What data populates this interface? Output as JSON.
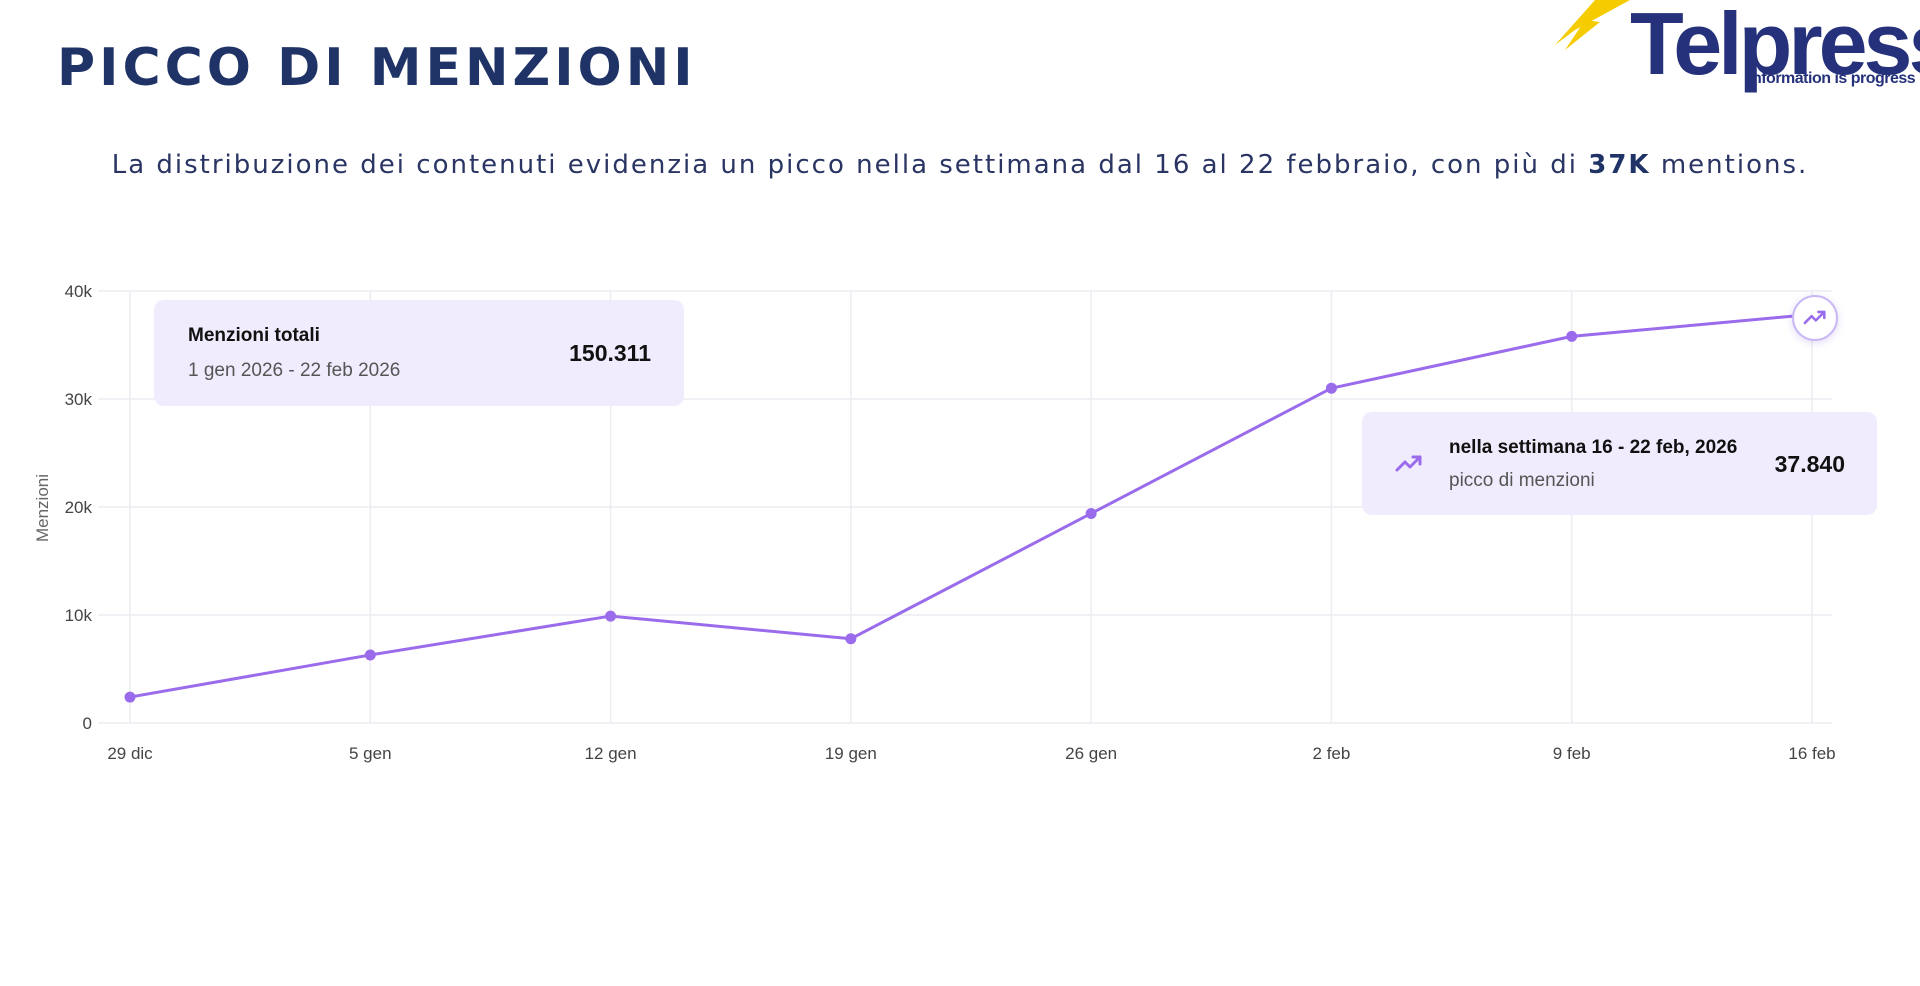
{
  "header": {
    "title": "PICCO DI MENZIONI",
    "subtitle_before": "La distribuzione dei contenuti evidenzia un picco nella settimana dal 16 al 22 febbraio, con più di ",
    "subtitle_bold": "37K",
    "subtitle_after": " mentions."
  },
  "logo": {
    "name": "Telpress",
    "tagline": "Information is progress",
    "colors": {
      "text": "#25317a",
      "accent": "#f5cc00"
    }
  },
  "cards": {
    "total": {
      "title": "Menzioni totali",
      "period": "1 gen 2026 - 22 feb 2026",
      "value": "150.311"
    },
    "peak": {
      "title": "nella settimana 16 - 22 feb, 2026",
      "subtitle": "picco di menzioni",
      "value": "37.840",
      "icon": "trend-up-icon"
    }
  },
  "chart_data": {
    "type": "line",
    "title": "",
    "xlabel": "",
    "ylabel": "Menzioni",
    "categories": [
      "29 dic",
      "5 gen",
      "12 gen",
      "19 gen",
      "26 gen",
      "2 feb",
      "9 feb",
      "16 feb"
    ],
    "series": [
      {
        "values": [
          2400,
          6300,
          9900,
          7800,
          19400,
          31000,
          35800,
          37840
        ]
      }
    ],
    "ylim": [
      0,
      40000
    ],
    "yticks": [
      0,
      10000,
      20000,
      30000,
      40000
    ],
    "ytick_labels": [
      "0",
      "10k",
      "20k",
      "30k",
      "40k"
    ],
    "grid": true,
    "colors": {
      "line": "#9a6cec",
      "grid": "#ececf2",
      "tick_text": "#444444"
    }
  }
}
